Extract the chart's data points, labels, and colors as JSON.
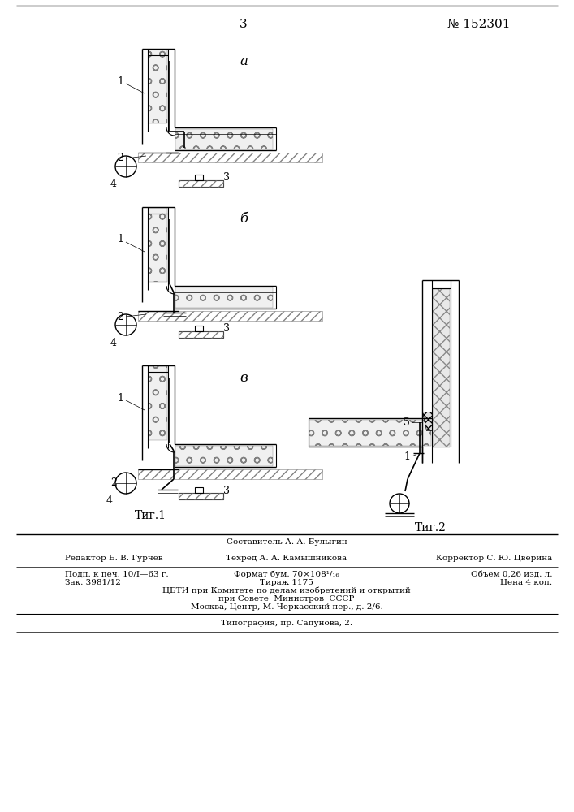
{
  "page_number": "- 3 -",
  "patent_number": "№ 152301",
  "fig1_label": "Τиг.1",
  "fig2_label": "Τиг.2",
  "fig_a_label": "а",
  "fig_b_label": "б",
  "fig_v_label": "в",
  "label1": "1",
  "label2": "2",
  "label3": "3",
  "label4": "4",
  "label5": "5",
  "footer_line1_left": "Редактор Б. В. Гурчев",
  "footer_line1_center": "Техред А. А. Камышникова",
  "footer_line1_right": "Корректор С. Ю. Цверина",
  "footer_composer": "Составитель А. А. Булыгин",
  "footer_line2_left": "Подп. к печ. 10/I—63 г.",
  "footer_line2_center": "Формат бум. 70×108¹/₁₆",
  "footer_line2_right": "Объем 0,26 изд. л.",
  "footer_line3_left": "Зак. 3981/12",
  "footer_line3_center": "Тираж 1175",
  "footer_line3_right": "Цена 4 коп.",
  "footer_line4": "ЦБТИ при Комитете по делам изобретений и открытий",
  "footer_line5": "при Совете  Министров  СССР",
  "footer_line6": "Москва, Центр, М. Черкасский пер., д. 2/6.",
  "footer_line7": "Типография, пр. Сапунова, 2.",
  "bg_color": "#ffffff",
  "line_color": "#000000"
}
